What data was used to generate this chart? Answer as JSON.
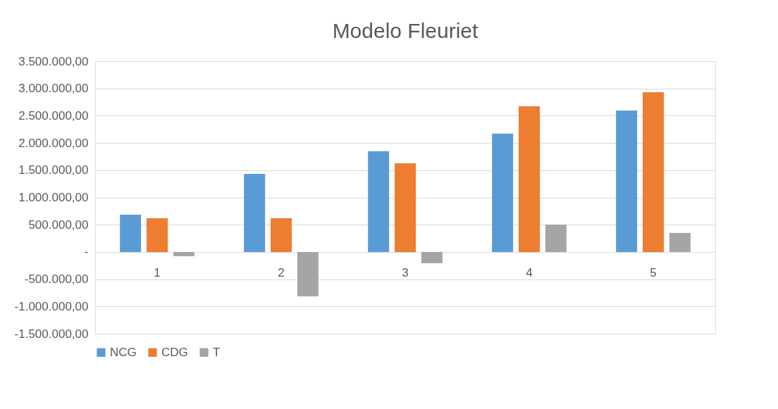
{
  "chart_data": {
    "type": "bar",
    "title": "Modelo Fleuriet",
    "categories": [
      "1",
      "2",
      "3",
      "4",
      "5"
    ],
    "series": [
      {
        "name": "NCG",
        "color": "#5b9bd5",
        "values": [
          685000,
          1434000,
          1848000,
          2171000,
          2597000
        ]
      },
      {
        "name": "CDG",
        "color": "#ed7d31",
        "values": [
          620000,
          620000,
          1628000,
          2674000,
          2933000
        ]
      },
      {
        "name": "T",
        "color": "#a5a5a5",
        "values": [
          -78000,
          -814000,
          -207000,
          504000,
          349000
        ]
      }
    ],
    "ylim": [
      -1500000,
      3500000
    ],
    "yticks": [
      {
        "value": -1500000,
        "label": "-1.500.000,00"
      },
      {
        "value": -1000000,
        "label": "-1.000.000,00"
      },
      {
        "value": -500000,
        "label": "-500.000,00"
      },
      {
        "value": 0,
        "label": "-"
      },
      {
        "value": 500000,
        "label": "500.000,00"
      },
      {
        "value": 1000000,
        "label": "1.000.000,00"
      },
      {
        "value": 1500000,
        "label": "1.500.000,00"
      },
      {
        "value": 2000000,
        "label": "2.000.000,00"
      },
      {
        "value": 2500000,
        "label": "2.500.000,00"
      },
      {
        "value": 3000000,
        "label": "3.000.000,00"
      },
      {
        "value": 3500000,
        "label": "3.500.000,00"
      }
    ],
    "grid": "y",
    "legend": "bottom"
  }
}
